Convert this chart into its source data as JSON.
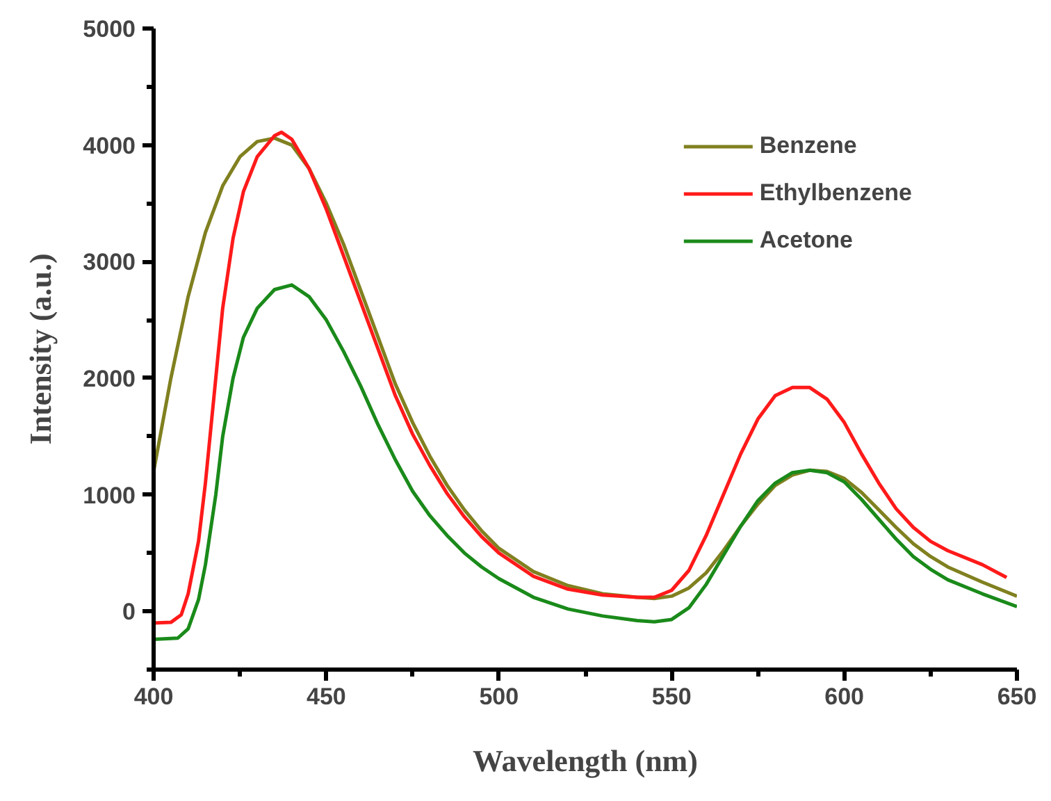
{
  "chart_data": {
    "type": "line",
    "xlabel": "Wavelength (nm)",
    "ylabel": "Intensity (a.u.)",
    "xlim": [
      400,
      650
    ],
    "ylim": [
      -500,
      5000
    ],
    "xticks": [
      400,
      450,
      500,
      550,
      600,
      650
    ],
    "yticks": [
      0,
      1000,
      2000,
      3000,
      4000,
      5000
    ],
    "grid": false,
    "legend": "top right",
    "line_style": "solid",
    "series": [
      {
        "name": "Benzene",
        "color": "#808020",
        "x": [
          400,
          405,
          410,
          415,
          420,
          425,
          430,
          435,
          440,
          445,
          450,
          455,
          460,
          465,
          470,
          475,
          480,
          485,
          490,
          495,
          500,
          510,
          520,
          530,
          540,
          545,
          550,
          555,
          560,
          565,
          570,
          575,
          580,
          585,
          590,
          595,
          600,
          605,
          610,
          615,
          620,
          625,
          630,
          640,
          650
        ],
        "values": [
          1200,
          2000,
          2700,
          3250,
          3650,
          3900,
          4030,
          4060,
          4000,
          3800,
          3500,
          3150,
          2750,
          2350,
          1950,
          1620,
          1330,
          1080,
          870,
          690,
          540,
          340,
          220,
          150,
          120,
          110,
          130,
          200,
          330,
          520,
          730,
          920,
          1080,
          1170,
          1210,
          1200,
          1140,
          1020,
          870,
          720,
          580,
          470,
          380,
          250,
          130
        ]
      },
      {
        "name": "Ethylbenzene",
        "color": "#ff1a1a",
        "x": [
          400,
          405,
          408,
          410,
          413,
          415,
          418,
          420,
          423,
          426,
          430,
          435,
          437,
          440,
          445,
          450,
          455,
          460,
          465,
          470,
          475,
          480,
          485,
          490,
          495,
          500,
          510,
          520,
          530,
          540,
          545,
          550,
          555,
          560,
          565,
          570,
          575,
          580,
          585,
          590,
          595,
          600,
          605,
          610,
          615,
          620,
          625,
          630,
          640,
          647
        ],
        "values": [
          -100,
          -95,
          -30,
          150,
          600,
          1100,
          2000,
          2600,
          3200,
          3600,
          3900,
          4080,
          4110,
          4050,
          3800,
          3450,
          3050,
          2650,
          2250,
          1850,
          1520,
          1250,
          1010,
          810,
          640,
          500,
          300,
          190,
          140,
          120,
          120,
          180,
          350,
          650,
          1000,
          1350,
          1650,
          1850,
          1920,
          1920,
          1820,
          1620,
          1350,
          1100,
          880,
          720,
          600,
          520,
          400,
          290
        ]
      },
      {
        "name": "Acetone",
        "color": "#1a8a1a",
        "x": [
          400,
          407,
          410,
          413,
          415,
          418,
          420,
          423,
          426,
          430,
          435,
          440,
          445,
          450,
          455,
          460,
          465,
          470,
          475,
          480,
          485,
          490,
          495,
          500,
          510,
          520,
          530,
          540,
          545,
          550,
          555,
          560,
          565,
          570,
          575,
          580,
          585,
          590,
          595,
          600,
          605,
          610,
          615,
          620,
          625,
          630,
          640,
          650
        ],
        "values": [
          -240,
          -230,
          -150,
          100,
          400,
          1000,
          1500,
          2000,
          2350,
          2600,
          2760,
          2800,
          2700,
          2500,
          2230,
          1930,
          1600,
          1300,
          1030,
          820,
          650,
          500,
          380,
          280,
          120,
          20,
          -40,
          -80,
          -90,
          -70,
          30,
          230,
          480,
          730,
          950,
          1100,
          1190,
          1210,
          1190,
          1110,
          960,
          790,
          620,
          470,
          360,
          270,
          150,
          40
        ]
      }
    ]
  }
}
